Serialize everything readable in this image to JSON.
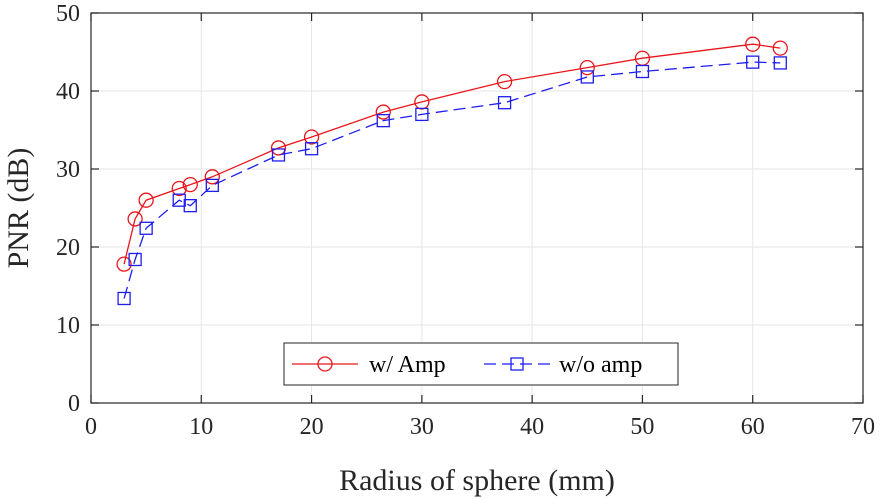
{
  "chart_data": {
    "type": "line",
    "title": "",
    "xlabel": "Radius of sphere (mm)",
    "ylabel": "PNR (dB)",
    "xlim": [
      0,
      70
    ],
    "ylim": [
      0,
      50
    ],
    "xticks": [
      0,
      10,
      20,
      30,
      40,
      50,
      60,
      70
    ],
    "yticks": [
      0,
      10,
      20,
      30,
      40,
      50
    ],
    "grid": true,
    "legend_position": "bottom-right",
    "series": [
      {
        "name": "w/ Amp",
        "color": "#e8161b",
        "line_style": "solid",
        "marker": "circle",
        "x": [
          3,
          4,
          5,
          8,
          9,
          11,
          17,
          20,
          26.5,
          30,
          37.5,
          45,
          50,
          60,
          62.5
        ],
        "y": [
          17.8,
          23.6,
          26.0,
          27.5,
          28.0,
          29.0,
          32.7,
          34.1,
          37.3,
          38.6,
          41.2,
          43.0,
          44.2,
          46.0,
          45.5
        ]
      },
      {
        "name": "w/o amp",
        "color": "#1d1df0",
        "line_style": "dashed",
        "marker": "square",
        "x": [
          3,
          4,
          5,
          8,
          9,
          11,
          17,
          20,
          26.5,
          30,
          37.5,
          45,
          50,
          60,
          62.5
        ],
        "y": [
          13.4,
          18.4,
          22.4,
          26.0,
          25.3,
          27.9,
          31.8,
          32.6,
          36.2,
          37.0,
          38.5,
          41.8,
          42.5,
          43.7,
          43.6
        ]
      }
    ]
  }
}
